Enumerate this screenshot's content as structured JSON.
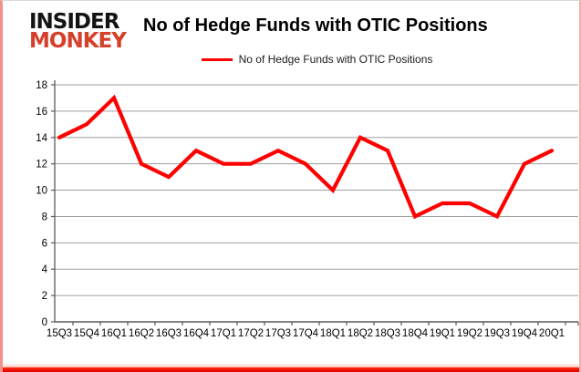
{
  "logo": {
    "line1": "INSIDER",
    "line2": "MONKEY"
  },
  "header": {
    "title": "No of Hedge Funds with OTIC Positions"
  },
  "legend": {
    "label": "No of Hedge Funds with OTIC Positions"
  },
  "colors": {
    "line": "#ff0000",
    "grid": "#9f9f9f",
    "axis": "#595959",
    "tick_label": "#000000",
    "logo_black": "#141414",
    "logo_red": "#d5402b",
    "frame_accent": "#ee1c00"
  },
  "chart_data": {
    "type": "line",
    "title": "No of Hedge Funds with OTIC Positions",
    "series": [
      {
        "name": "No of Hedge Funds with OTIC Positions",
        "values": [
          14,
          15,
          17,
          12,
          11,
          13,
          12,
          12,
          13,
          12,
          10,
          14,
          13,
          8,
          9,
          9,
          8,
          12,
          13
        ]
      }
    ],
    "categories": [
      "15Q3",
      "15Q4",
      "16Q1",
      "16Q2",
      "16Q3",
      "16Q4",
      "17Q1",
      "17Q2",
      "17Q3",
      "17Q4",
      "18Q1",
      "18Q2",
      "18Q3",
      "18Q4",
      "19Q1",
      "19Q2",
      "19Q3",
      "19Q4",
      "20Q1"
    ],
    "xlabel": "",
    "ylabel": "",
    "ylim": [
      0,
      18
    ],
    "yticks": [
      0,
      2,
      4,
      6,
      8,
      10,
      12,
      14,
      16,
      18
    ],
    "grid": true,
    "legend_position": "top-center"
  }
}
